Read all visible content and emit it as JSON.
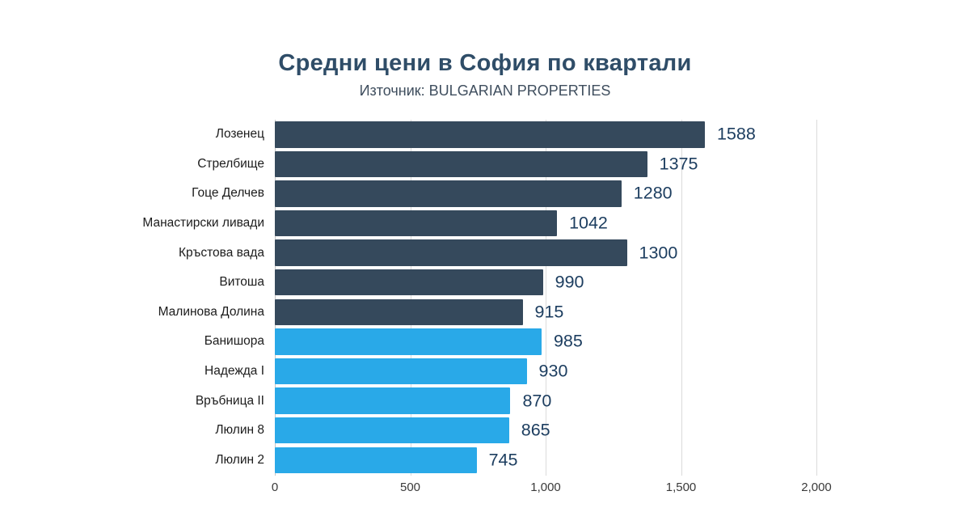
{
  "header": {
    "title": "Средни цени в София по квартали",
    "subtitle": "Източник: BULGARIAN PROPERTIES"
  },
  "colors": {
    "bar_dark": "#35495C",
    "bar_light": "#29A9E8",
    "title": "#2F4D68",
    "subtitle": "#3F4E5E",
    "value_label": "#1D3E60",
    "gridline": "#DBDBDB",
    "axis_text": "#3A3A3A",
    "background": "#FFFFFF"
  },
  "chart_data": {
    "type": "bar",
    "orientation": "horizontal",
    "title": "Средни цени в София по квартали",
    "subtitle": "Източник: BULGARIAN PROPERTIES",
    "categories": [
      "Лозенец",
      "Стрелбище",
      "Гоце Делчев",
      "Манастирски ливади",
      "Кръстова вада",
      "Витоша",
      "Малинова Долина",
      "Банишора",
      "Надежда I",
      "Връбница II",
      "Люлин 8",
      "Люлин 2"
    ],
    "values": [
      1588,
      1375,
      1280,
      1042,
      1300,
      990,
      915,
      985,
      930,
      870,
      865,
      745
    ],
    "bar_colors": [
      "dark",
      "dark",
      "dark",
      "dark",
      "dark",
      "dark",
      "dark",
      "light",
      "light",
      "light",
      "light",
      "light"
    ],
    "data_labels": [
      "1588",
      "1375",
      "1280",
      "1042",
      "1300",
      "990",
      "915",
      "985",
      "930",
      "870",
      "865",
      "745"
    ],
    "xlim": [
      0,
      2000
    ],
    "x_ticks": [
      {
        "value": 0,
        "label": "0"
      },
      {
        "value": 500,
        "label": "500"
      },
      {
        "value": 1000,
        "label": "1,000"
      },
      {
        "value": 1500,
        "label": "1,500"
      },
      {
        "value": 2000,
        "label": "2,000"
      }
    ],
    "grid": "vertical",
    "legend": "none",
    "xlabel": "",
    "ylabel": ""
  }
}
